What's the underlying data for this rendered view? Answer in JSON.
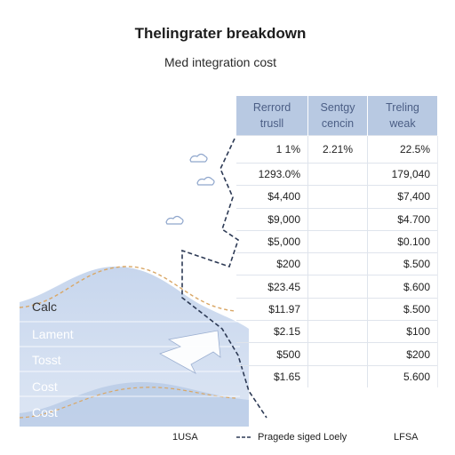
{
  "chart_data": {
    "type": "table",
    "title": "Thelingrater breakdown",
    "subtitle": "Med integration cost",
    "columns": [
      {
        "line1": "Rerrord",
        "line2": "trusll"
      },
      {
        "line1": "Sentgy",
        "line2": "cencin"
      },
      {
        "line1": "Treling",
        "line2": "weak"
      }
    ],
    "rows": [
      [
        "1 1%",
        "2.21%",
        "22.5%"
      ],
      [
        "1293.0%",
        "",
        "179,040"
      ],
      [
        "$4,400",
        "",
        "$7,400"
      ],
      [
        "$9,000",
        "",
        "$4.700"
      ],
      [
        "$5,000",
        "",
        "$0.100"
      ],
      [
        "$200",
        "",
        "$.500"
      ],
      [
        "$23.45",
        "",
        "$.600"
      ],
      [
        "$11.97",
        "",
        "$.500"
      ],
      [
        "$2.15",
        "",
        "$100"
      ],
      [
        "$500",
        "",
        "$200"
      ],
      [
        "$1.65",
        "",
        "5.600"
      ]
    ],
    "area_labels": [
      "Calc",
      "Lament",
      "Tosst",
      "Cost",
      "Cost"
    ],
    "legend": [
      {
        "label": "1USA"
      },
      {
        "label": "Pragede siged Loely"
      },
      {
        "label": "LFSA"
      }
    ]
  },
  "colors": {
    "header_fill": "#b8c9e2",
    "header_text": "#4b5e85",
    "area_fill": "#c9d8ee",
    "dashed_curve": "#d9a766",
    "zigzag": "#2d3a55"
  }
}
